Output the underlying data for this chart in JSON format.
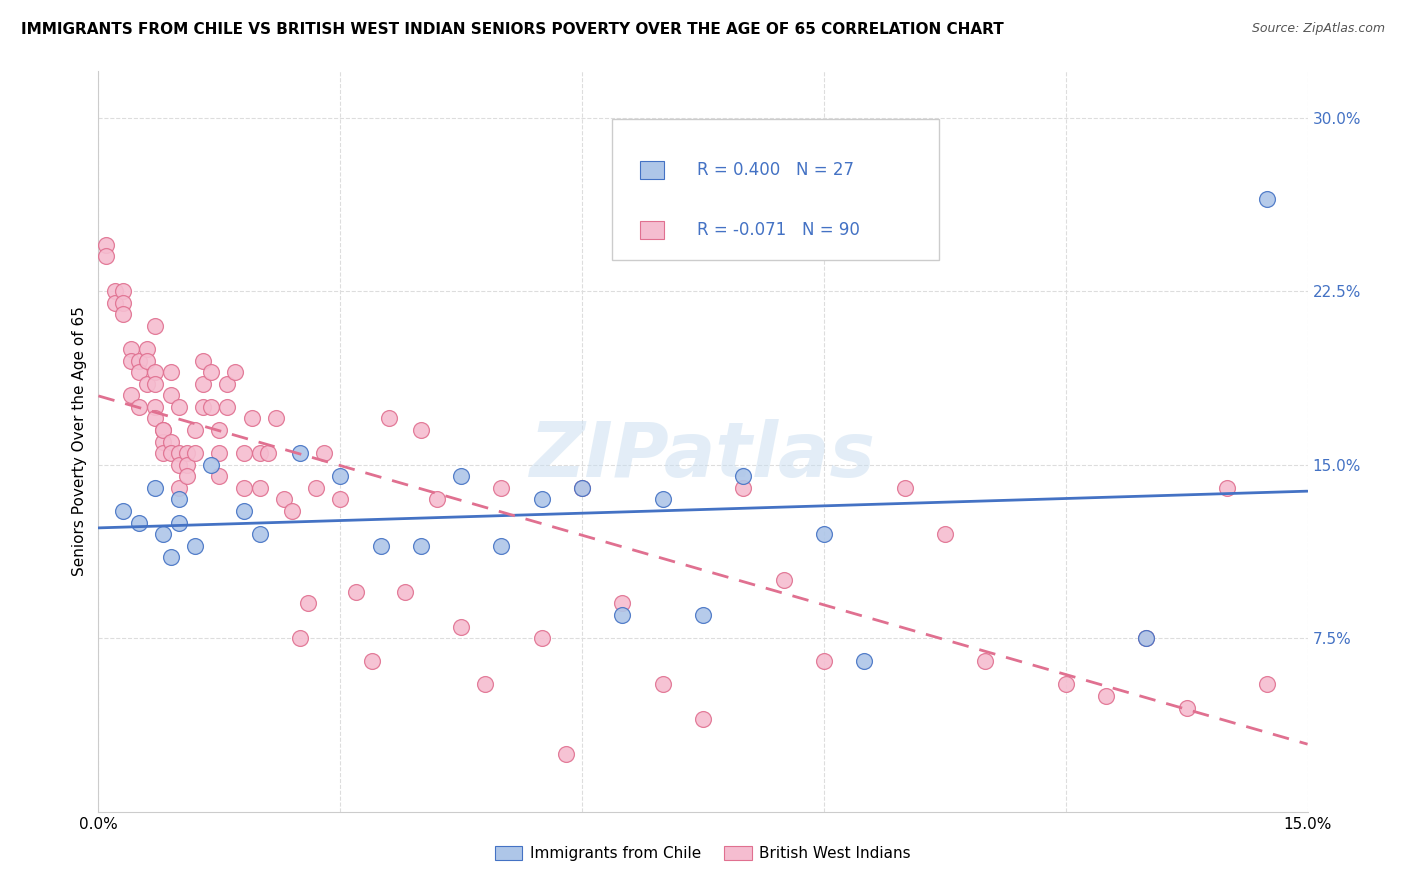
{
  "title": "IMMIGRANTS FROM CHILE VS BRITISH WEST INDIAN SENIORS POVERTY OVER THE AGE OF 65 CORRELATION CHART",
  "source": "Source: ZipAtlas.com",
  "ylabel": "Seniors Poverty Over the Age of 65",
  "xlim": [
    0.0,
    0.15
  ],
  "ylim": [
    0.0,
    0.32
  ],
  "xticks": [
    0.0,
    0.03,
    0.06,
    0.09,
    0.12,
    0.15
  ],
  "xticklabels": [
    "0.0%",
    "",
    "",
    "",
    "",
    "15.0%"
  ],
  "yticks": [
    0.075,
    0.15,
    0.225,
    0.3
  ],
  "yticklabels": [
    "7.5%",
    "15.0%",
    "22.5%",
    "30.0%"
  ],
  "chile_R": 0.4,
  "chile_N": 27,
  "bwi_R": -0.071,
  "bwi_N": 90,
  "chile_color": "#aec6e8",
  "bwi_color": "#f5bdd0",
  "chile_line_color": "#4472c4",
  "bwi_line_color": "#e07090",
  "watermark": "ZIPatlas",
  "chile_points_x": [
    0.003,
    0.005,
    0.007,
    0.008,
    0.009,
    0.01,
    0.01,
    0.012,
    0.014,
    0.018,
    0.02,
    0.025,
    0.03,
    0.035,
    0.04,
    0.045,
    0.05,
    0.055,
    0.06,
    0.065,
    0.07,
    0.075,
    0.08,
    0.09,
    0.095,
    0.13,
    0.145
  ],
  "chile_points_y": [
    0.13,
    0.125,
    0.14,
    0.12,
    0.11,
    0.135,
    0.125,
    0.115,
    0.15,
    0.13,
    0.12,
    0.155,
    0.145,
    0.115,
    0.115,
    0.145,
    0.115,
    0.135,
    0.14,
    0.085,
    0.135,
    0.085,
    0.145,
    0.12,
    0.065,
    0.075,
    0.265
  ],
  "bwi_points_x": [
    0.001,
    0.001,
    0.002,
    0.002,
    0.003,
    0.003,
    0.003,
    0.004,
    0.004,
    0.004,
    0.005,
    0.005,
    0.005,
    0.006,
    0.006,
    0.006,
    0.007,
    0.007,
    0.007,
    0.007,
    0.007,
    0.008,
    0.008,
    0.008,
    0.008,
    0.009,
    0.009,
    0.009,
    0.009,
    0.01,
    0.01,
    0.01,
    0.01,
    0.011,
    0.011,
    0.011,
    0.012,
    0.012,
    0.013,
    0.013,
    0.013,
    0.014,
    0.014,
    0.015,
    0.015,
    0.015,
    0.016,
    0.016,
    0.017,
    0.018,
    0.018,
    0.019,
    0.02,
    0.02,
    0.021,
    0.022,
    0.023,
    0.024,
    0.025,
    0.026,
    0.027,
    0.028,
    0.03,
    0.032,
    0.034,
    0.036,
    0.038,
    0.04,
    0.042,
    0.045,
    0.048,
    0.05,
    0.055,
    0.058,
    0.06,
    0.065,
    0.07,
    0.075,
    0.08,
    0.085,
    0.09,
    0.1,
    0.105,
    0.11,
    0.12,
    0.125,
    0.13,
    0.135,
    0.14,
    0.145
  ],
  "bwi_points_y": [
    0.245,
    0.24,
    0.225,
    0.22,
    0.225,
    0.22,
    0.215,
    0.2,
    0.195,
    0.18,
    0.195,
    0.175,
    0.19,
    0.2,
    0.195,
    0.185,
    0.21,
    0.19,
    0.185,
    0.175,
    0.17,
    0.165,
    0.16,
    0.165,
    0.155,
    0.19,
    0.18,
    0.16,
    0.155,
    0.155,
    0.175,
    0.15,
    0.14,
    0.155,
    0.15,
    0.145,
    0.165,
    0.155,
    0.195,
    0.185,
    0.175,
    0.19,
    0.175,
    0.165,
    0.155,
    0.145,
    0.185,
    0.175,
    0.19,
    0.155,
    0.14,
    0.17,
    0.155,
    0.14,
    0.155,
    0.17,
    0.135,
    0.13,
    0.075,
    0.09,
    0.14,
    0.155,
    0.135,
    0.095,
    0.065,
    0.17,
    0.095,
    0.165,
    0.135,
    0.08,
    0.055,
    0.14,
    0.075,
    0.025,
    0.14,
    0.09,
    0.055,
    0.04,
    0.14,
    0.1,
    0.065,
    0.14,
    0.12,
    0.065,
    0.055,
    0.05,
    0.075,
    0.045,
    0.14,
    0.055
  ]
}
